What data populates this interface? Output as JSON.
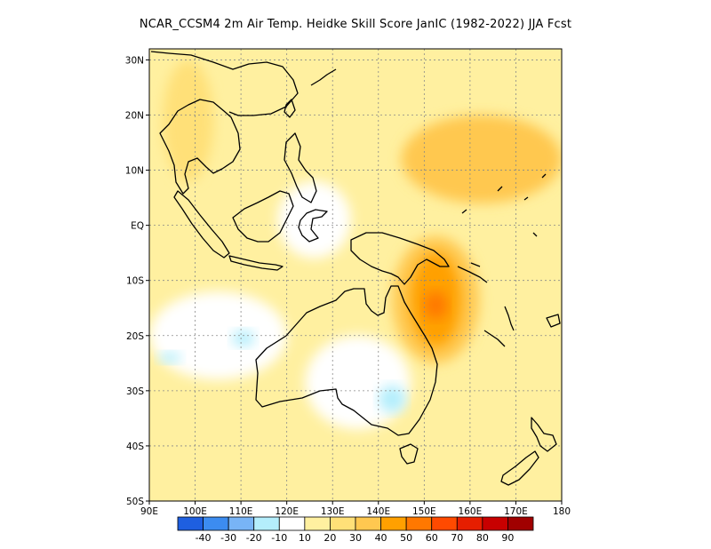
{
  "title": "NCAR_CCSM4  2m Air Temp. Heidke Skill Score JanIC (1982-2022) JJA Fcst",
  "map": {
    "lon_range": [
      90,
      180
    ],
    "lat_range": [
      -50,
      32
    ],
    "lat_ticks": [
      {
        "value": 30,
        "label": "30N"
      },
      {
        "value": 20,
        "label": "20N"
      },
      {
        "value": 10,
        "label": "10N"
      },
      {
        "value": 0,
        "label": "EQ"
      },
      {
        "value": -10,
        "label": "10S"
      },
      {
        "value": -20,
        "label": "20S"
      },
      {
        "value": -30,
        "label": "30S"
      },
      {
        "value": -40,
        "label": "40S"
      },
      {
        "value": -50,
        "label": "50S"
      }
    ],
    "lon_ticks": [
      {
        "value": 90,
        "label": "90E"
      },
      {
        "value": 100,
        "label": "100E"
      },
      {
        "value": 110,
        "label": "110E"
      },
      {
        "value": 120,
        "label": "120E"
      },
      {
        "value": 130,
        "label": "130E"
      },
      {
        "value": 140,
        "label": "140E"
      },
      {
        "value": 150,
        "label": "150E"
      },
      {
        "value": 160,
        "label": "160E"
      },
      {
        "value": 170,
        "label": "170E"
      },
      {
        "value": 180,
        "label": "180"
      }
    ],
    "background_color": "#ffffff",
    "coastline_color": "#000000",
    "gridline_style": "dotted gray"
  },
  "colorbar": {
    "colors": [
      "#1e5fe0",
      "#3c8cf0",
      "#78b4f6",
      "#b4eefc",
      "#ffffff",
      "#fff0a0",
      "#ffe078",
      "#ffc850",
      "#ffa000",
      "#ff7800",
      "#ff4a00",
      "#e61e00",
      "#c80000",
      "#a00000"
    ],
    "labels": [
      "-40",
      "-30",
      "-20",
      "-10",
      "10",
      "20",
      "30",
      "40",
      "50",
      "60",
      "70",
      "80",
      "90"
    ]
  },
  "skill_regions": [
    {
      "level": "10-20",
      "color": "#fff0a0",
      "lon": [
        90,
        180
      ],
      "lat": [
        -50,
        32
      ]
    },
    {
      "level": "20-30",
      "color": "#ffe078",
      "lon": [
        93,
        104
      ],
      "lat": [
        8,
        30
      ]
    },
    {
      "level": "30-40",
      "color": "#ffc850",
      "lon": [
        145,
        180
      ],
      "lat": [
        4,
        20
      ]
    },
    {
      "level": "30-40",
      "color": "#ffc850",
      "lon": [
        143,
        162
      ],
      "lat": [
        -25,
        -2
      ]
    },
    {
      "level": "40-50",
      "color": "#ffa000",
      "lon": [
        147,
        158
      ],
      "lat": [
        -22,
        -5
      ]
    },
    {
      "level": "50-60",
      "color": "#ff7800",
      "lon": [
        150,
        155
      ],
      "lat": [
        -17,
        -12
      ]
    },
    {
      "level": "-10-10",
      "color": "#ffffff",
      "lon": [
        124,
        147
      ],
      "lat": [
        -37,
        -20
      ]
    },
    {
      "level": "-10-10",
      "color": "#ffffff",
      "lon": [
        118,
        134
      ],
      "lat": [
        -6,
        8
      ]
    },
    {
      "level": "-10-10",
      "color": "#ffffff",
      "lon": [
        90,
        120
      ],
      "lat": [
        -28,
        -12
      ]
    },
    {
      "level": "-20--10",
      "color": "#b4eefc",
      "lon": [
        140,
        146
      ],
      "lat": [
        -34,
        -29
      ]
    },
    {
      "level": "-20--10",
      "color": "#b4eefc",
      "lon": [
        108,
        113
      ],
      "lat": [
        -22,
        -19
      ]
    },
    {
      "level": "-20--10",
      "color": "#b4eefc",
      "lon": [
        92,
        97
      ],
      "lat": [
        -25,
        -23
      ]
    }
  ]
}
